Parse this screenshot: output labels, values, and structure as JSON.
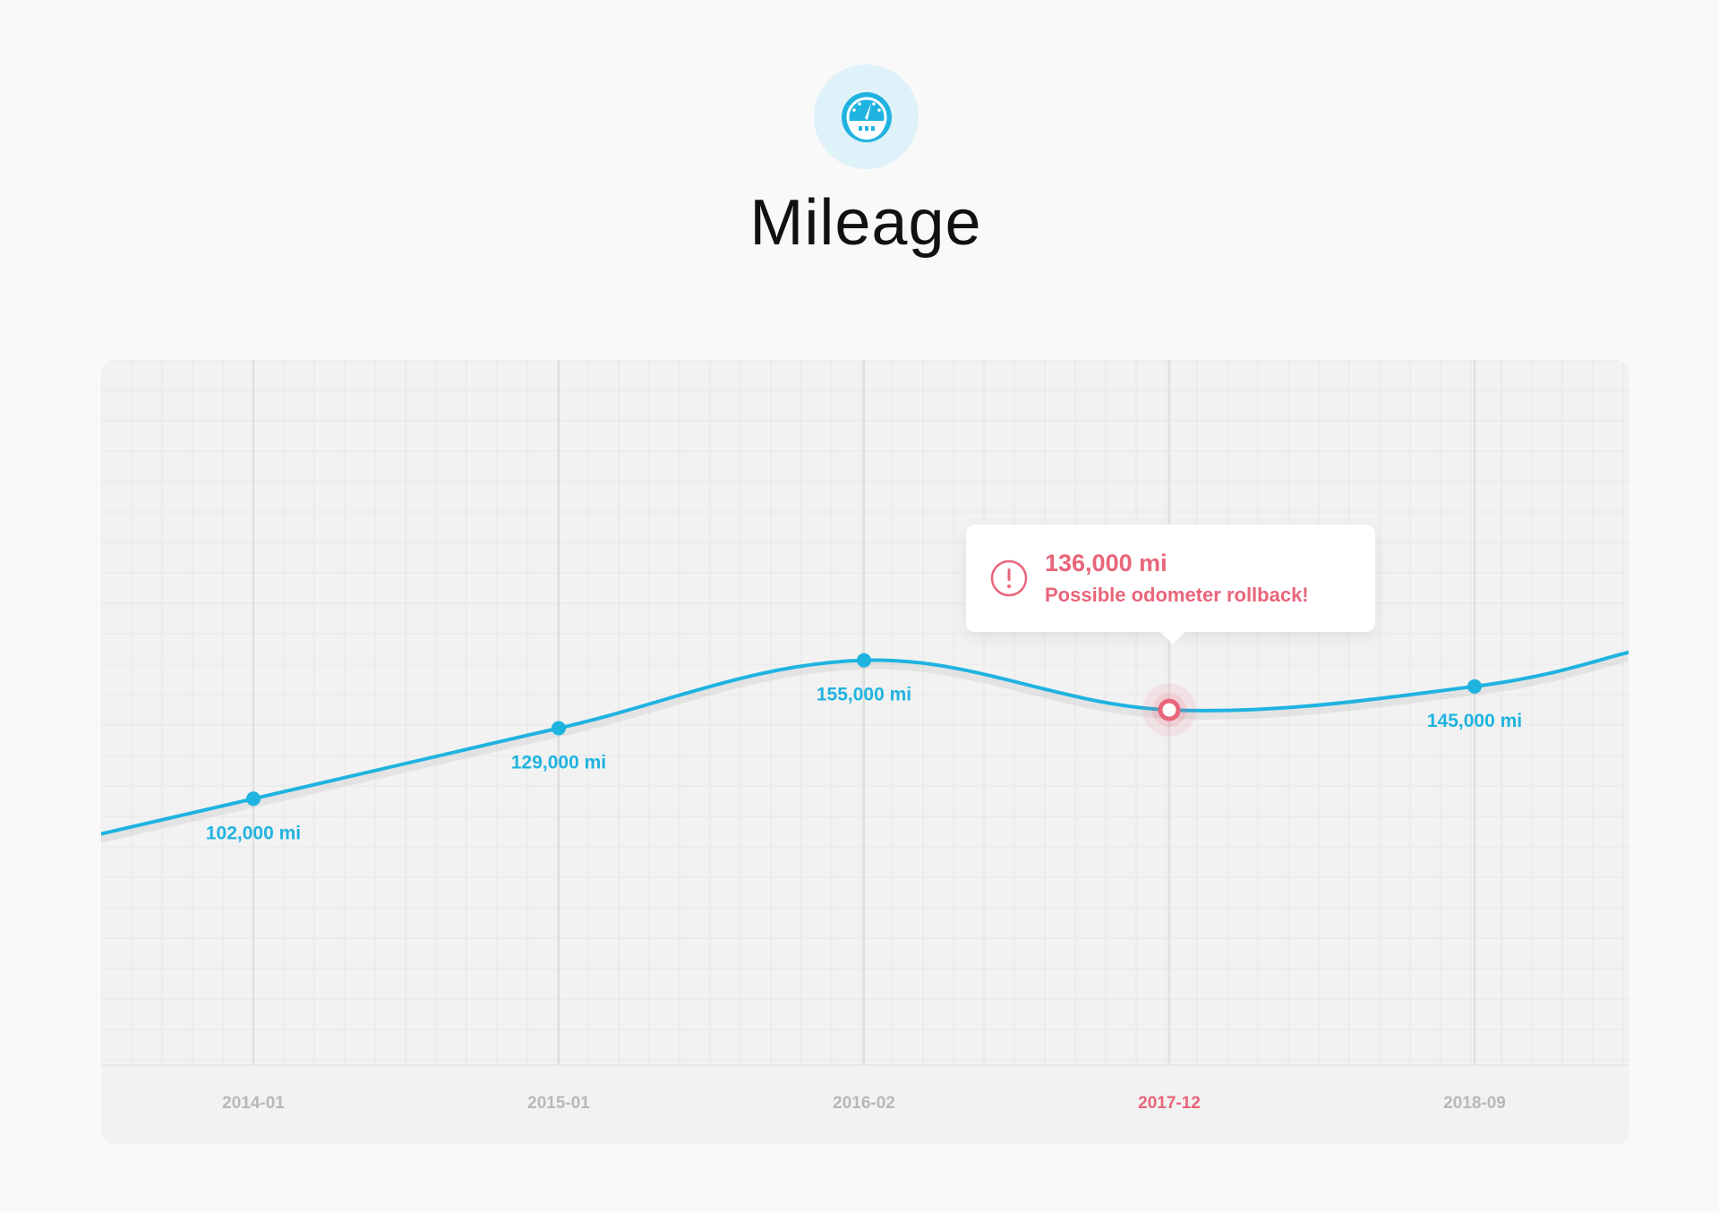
{
  "header": {
    "icon": "speedometer-icon",
    "title": "Mileage"
  },
  "colors": {
    "line": "#1fb3e0",
    "alert": "#e8657a",
    "tick": "#b8b8b8",
    "icon_bg": "#dff1f9",
    "card_bg": "#f2f2f2"
  },
  "tooltip": {
    "value": "136,000 mi",
    "message": "Possible odometer rollback!",
    "icon": "alert-circle-icon"
  },
  "chart_data": {
    "type": "line",
    "grid": true,
    "x": [
      "2014-01",
      "2015-01",
      "2016-02",
      "2017-12",
      "2018-09"
    ],
    "values": [
      102000,
      129000,
      155000,
      136000,
      145000
    ],
    "value_labels": [
      "102,000 mi",
      "129,000 mi",
      "155,000 mi",
      "136,000 mi",
      "145,000 mi"
    ],
    "highlight": {
      "x": "2017-12",
      "value": 136000,
      "note": "Possible odometer rollback!"
    },
    "ylim": [
      0,
      270000
    ]
  }
}
